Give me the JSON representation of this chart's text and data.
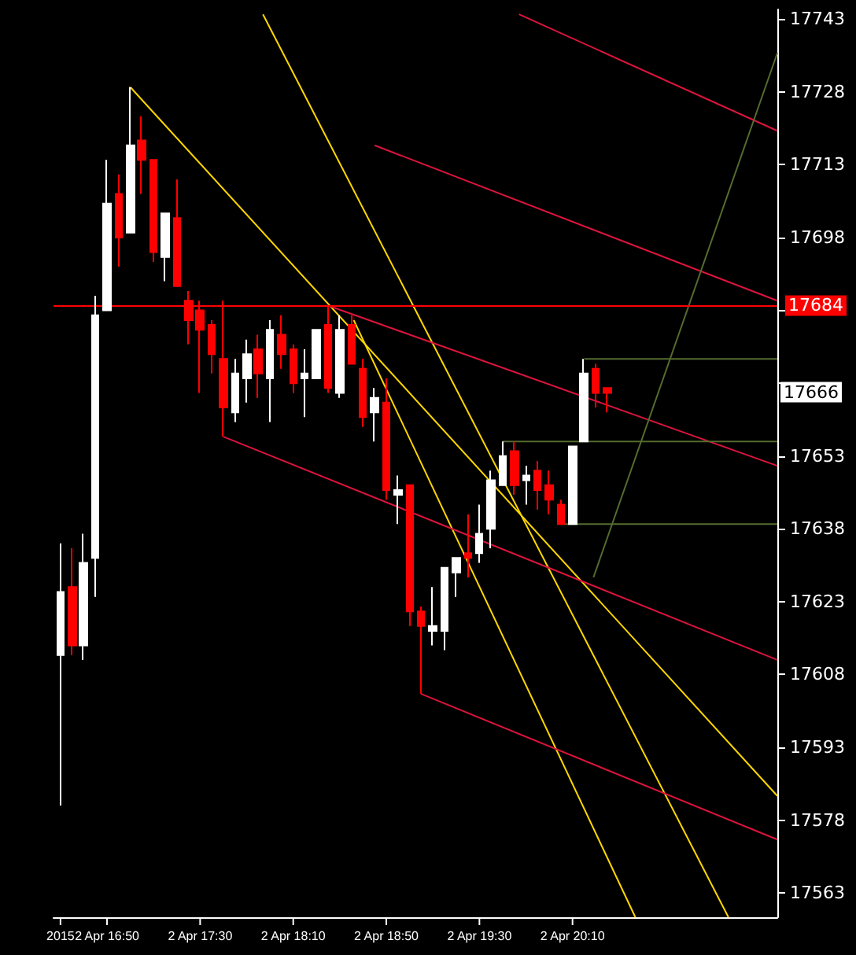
{
  "chart_data": {
    "type": "candlestick",
    "x": [
      "2015-04-02T16:30",
      "2015-04-02T16:35",
      "2015-04-02T16:40",
      "2015-04-02T16:45",
      "2015-04-02T16:50",
      "2015-04-02T16:55",
      "2015-04-02T17:00",
      "2015-04-02T17:05",
      "2015-04-02T17:10",
      "2015-04-02T17:15",
      "2015-04-02T17:20",
      "2015-04-02T17:25",
      "2015-04-02T17:30",
      "2015-04-02T17:35",
      "2015-04-02T17:40",
      "2015-04-02T17:45",
      "2015-04-02T17:50",
      "2015-04-02T17:55",
      "2015-04-02T18:00",
      "2015-04-02T18:05",
      "2015-04-02T18:10",
      "2015-04-02T18:15",
      "2015-04-02T18:20",
      "2015-04-02T18:25",
      "2015-04-02T18:30",
      "2015-04-02T18:35",
      "2015-04-02T18:40",
      "2015-04-02T18:45",
      "2015-04-02T18:50",
      "2015-04-02T18:55",
      "2015-04-02T19:00",
      "2015-04-02T19:05",
      "2015-04-02T19:10",
      "2015-04-02T19:15",
      "2015-04-02T19:20",
      "2015-04-02T19:25",
      "2015-04-02T19:30",
      "2015-04-02T19:35",
      "2015-04-02T19:40",
      "2015-04-02T19:45",
      "2015-04-02T19:50",
      "2015-04-02T19:55",
      "2015-04-02T20:00",
      "2015-04-02T20:05",
      "2015-04-02T20:10",
      "2015-04-02T20:15",
      "2015-04-02T20:20",
      "2015-04-02T20:25"
    ],
    "ohlc": [
      [
        17612,
        17635,
        17581,
        17625
      ],
      [
        17626,
        17634,
        17612,
        17614
      ],
      [
        17614,
        17637,
        17611,
        17631
      ],
      [
        17632,
        17686,
        17624,
        17682
      ],
      [
        17683,
        17714,
        17683,
        17705
      ],
      [
        17707,
        17711,
        17692,
        17698
      ],
      [
        17699,
        17729,
        17699,
        17717
      ],
      [
        17718,
        17723,
        17707,
        17714
      ],
      [
        17714,
        17714,
        17693,
        17695
      ],
      [
        17694,
        17703,
        17689,
        17703
      ],
      [
        17702,
        17710,
        17688,
        17688
      ],
      [
        17685,
        17687,
        17676,
        17681
      ],
      [
        17683,
        17685,
        17666,
        17679
      ],
      [
        17680,
        17681,
        17670,
        17674
      ],
      [
        17673,
        17685,
        17657,
        17663
      ],
      [
        17662,
        17673,
        17660,
        17670
      ],
      [
        17669,
        17677,
        17664,
        17674
      ],
      [
        17675,
        17678,
        17665,
        17670
      ],
      [
        17669,
        17681,
        17660,
        17679
      ],
      [
        17678,
        17682,
        17671,
        17674
      ],
      [
        17675,
        17676,
        17666,
        17668
      ],
      [
        17669,
        17675,
        17661,
        17670
      ],
      [
        17669,
        17679,
        17669,
        17679
      ],
      [
        17680,
        17684,
        17666,
        17667
      ],
      [
        17666,
        17682,
        17665,
        17679
      ],
      [
        17680,
        17682,
        17672,
        17672
      ],
      [
        17671,
        17673,
        17659,
        17661
      ],
      [
        17662,
        17667,
        17656,
        17665
      ],
      [
        17664,
        17669,
        17644,
        17646
      ],
      [
        17645,
        17649,
        17639,
        17646
      ],
      [
        17647,
        17647,
        17618,
        17621
      ],
      [
        17621,
        17622,
        17604,
        17618
      ],
      [
        17617,
        17626,
        17614,
        17618
      ],
      [
        17617,
        17630,
        17613,
        17630
      ],
      [
        17629,
        17632,
        17624,
        17632
      ],
      [
        17633,
        17641,
        17628,
        17632
      ],
      [
        17633,
        17643,
        17631,
        17637
      ],
      [
        17638,
        17650,
        17634,
        17648
      ],
      [
        17647,
        17656,
        17647,
        17653
      ],
      [
        17654,
        17656,
        17645,
        17647
      ],
      [
        17648,
        17651,
        17643,
        17649
      ],
      [
        17650,
        17652,
        17642,
        17646
      ],
      [
        17647,
        17650,
        17641,
        17644
      ],
      [
        17643,
        17644,
        17639,
        17639
      ],
      [
        17639,
        17655,
        17639,
        17655
      ],
      [
        17656,
        17673,
        17656,
        17670
      ],
      [
        17671,
        17672,
        17663,
        17666
      ],
      [
        17667,
        17667,
        17662,
        17666
      ]
    ],
    "colors": [
      "#ffffff",
      "#ff0000",
      "#ffffff",
      "#ffffff",
      "#ffffff",
      "#ff0000",
      "#ffffff",
      "#ff0000",
      "#ff0000",
      "#ffffff",
      "#ff0000",
      "#ff0000",
      "#ff0000",
      "#ff0000",
      "#ff0000",
      "#ffffff",
      "#ffffff",
      "#ff0000",
      "#ffffff",
      "#ff0000",
      "#ff0000",
      "#ffffff",
      "#ffffff",
      "#ff0000",
      "#ffffff",
      "#ff0000",
      "#ff0000",
      "#ffffff",
      "#ff0000",
      "#ffffff",
      "#ff0000",
      "#ff0000",
      "#ffffff",
      "#ffffff",
      "#ffffff",
      "#ff0000",
      "#ffffff",
      "#ffffff",
      "#ffffff",
      "#ff0000",
      "#ffffff",
      "#ff0000",
      "#ff0000",
      "#ff0000",
      "#ffffff",
      "#ffffff",
      "#ff0000",
      "#ff0000"
    ],
    "series": [
      {
        "type": "line",
        "color": "#ffd700",
        "x": [
          "2015-04-02T17:00",
          "2015-04-02T21:38"
        ],
        "values": [
          17729,
          17583
        ]
      },
      {
        "type": "line",
        "color": "#ffd700",
        "x": [
          "2015-04-02T17:57",
          "2015-04-02T21:17"
        ],
        "values": [
          17744,
          17558
        ]
      },
      {
        "type": "line",
        "color": "#ffd700",
        "x": [
          "2015-04-02T18:36",
          "2015-04-02T20:37"
        ],
        "values": [
          17681,
          17558
        ]
      },
      {
        "type": "line",
        "color": "#dc143c",
        "x": [
          "2015-04-02T19:47",
          "2015-04-02T21:38"
        ],
        "values": [
          17744,
          17720
        ]
      },
      {
        "type": "line",
        "color": "#dc143c",
        "x": [
          "2015-04-02T18:45",
          "2015-04-02T21:38"
        ],
        "values": [
          17717,
          17685
        ]
      },
      {
        "type": "line",
        "color": "#dc143c",
        "x": [
          "2015-04-02T18:25",
          "2015-04-02T21:38"
        ],
        "values": [
          17684,
          17651
        ]
      },
      {
        "type": "line",
        "color": "#dc143c",
        "x": [
          "2015-04-02T17:40",
          "2015-04-02T21:38"
        ],
        "values": [
          17657,
          17611
        ]
      },
      {
        "type": "line",
        "color": "#dc143c",
        "x": [
          "2015-04-02T19:05",
          "2015-04-02T21:38"
        ],
        "values": [
          17604,
          17574
        ]
      },
      {
        "type": "line",
        "color": "#556b2f",
        "x": [
          "2015-04-02T20:15",
          "2015-04-02T21:38"
        ],
        "values": [
          17673,
          17673
        ]
      },
      {
        "type": "line",
        "color": "#556b2f",
        "x": [
          "2015-04-02T19:40",
          "2015-04-02T21:38"
        ],
        "values": [
          17656,
          17656
        ]
      },
      {
        "type": "line",
        "color": "#556b2f",
        "x": [
          "2015-04-02T20:05",
          "2015-04-02T21:38"
        ],
        "values": [
          17639,
          17639
        ]
      },
      {
        "type": "line",
        "color": "#556b2f",
        "x": [
          "2015-04-02T20:19",
          "2015-04-02T21:38"
        ],
        "values": [
          17628,
          17736
        ]
      }
    ],
    "xlim": [
      "2015-04-02T16:27",
      "2015-04-02T21:38"
    ],
    "xticks": [
      {
        "value": "2015-04-02T16:30",
        "label": "2015"
      },
      {
        "value": "2015-04-02T16:50",
        "label": "2 Apr 16:50"
      },
      {
        "value": "2015-04-02T17:30",
        "label": "2 Apr 17:30"
      },
      {
        "value": "2015-04-02T18:10",
        "label": "2 Apr 18:10"
      },
      {
        "value": "2015-04-02T18:50",
        "label": "2 Apr 18:50"
      },
      {
        "value": "2015-04-02T19:30",
        "label": "2 Apr 19:30"
      },
      {
        "value": "2015-04-02T20:10",
        "label": "2 Apr 20:10"
      }
    ],
    "ylim": [
      17558,
      17745
    ],
    "yticks": [
      17563,
      17578,
      17593,
      17608,
      17623,
      17638,
      17653,
      {
        "value": 17668,
        "label": null
      },
      {
        "value": 17683,
        "label": null
      },
      17698,
      17713,
      17728,
      17743
    ],
    "ref_lines": [
      {
        "axis": "y",
        "value": 17684,
        "label": "17684",
        "color": "#ff0000"
      }
    ],
    "annotations": [
      {
        "text": "17666",
        "y": 17666
      }
    ],
    "grid": false
  }
}
